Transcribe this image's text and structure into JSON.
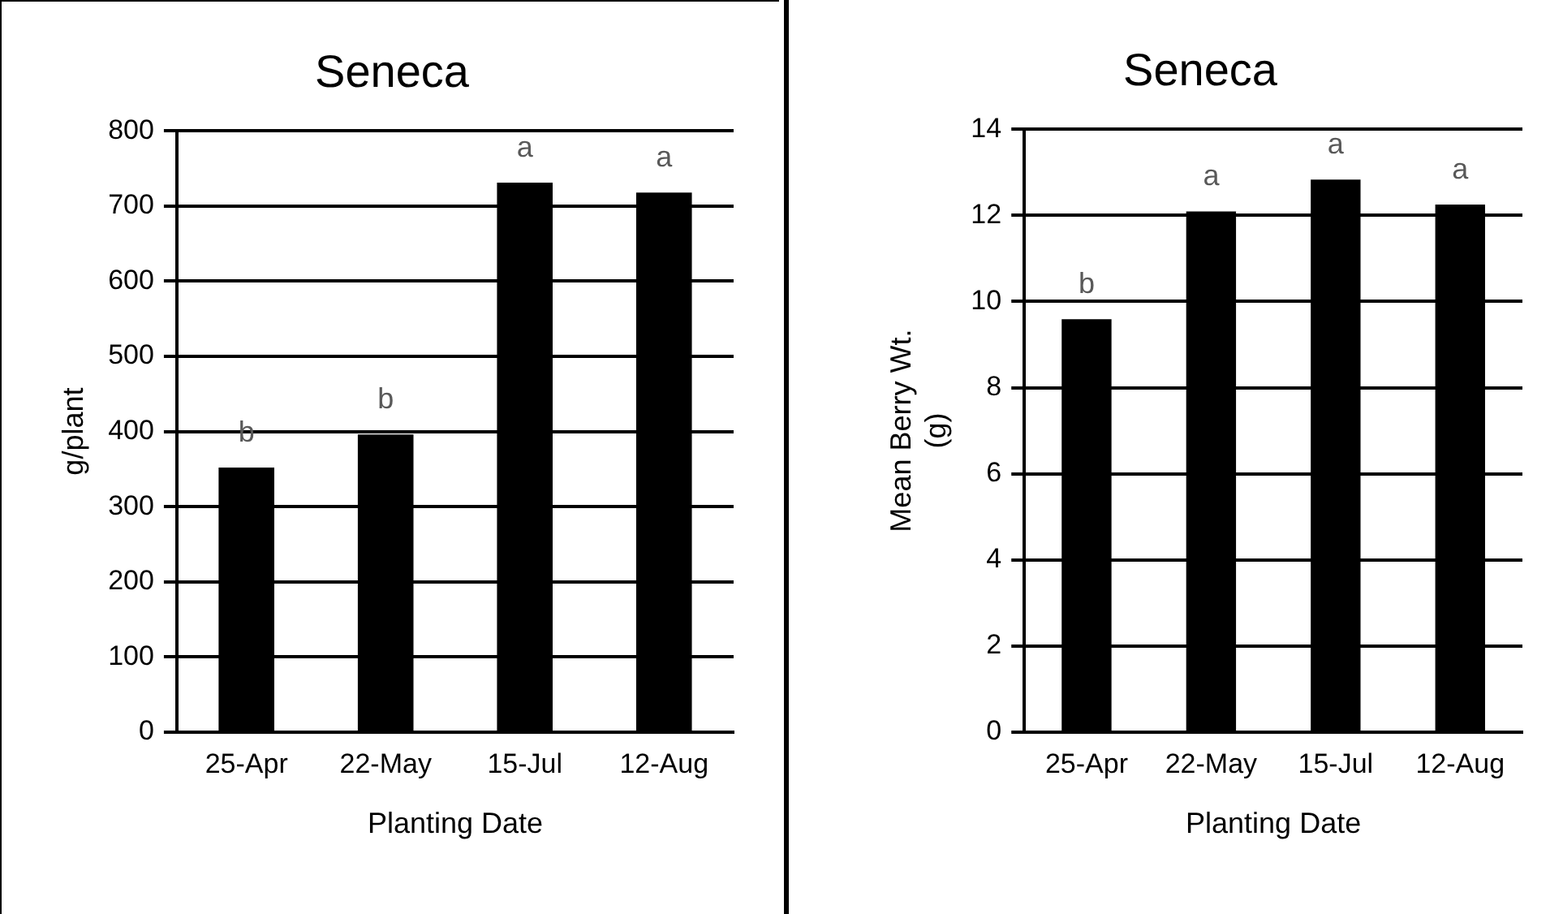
{
  "chart_data": [
    {
      "type": "bar",
      "title": "Seneca",
      "xlabel": "Planting Date",
      "ylabel": "g/plant",
      "categories": [
        "25-Apr",
        "22-May",
        "15-Jul",
        "12-Aug"
      ],
      "values": [
        352,
        396,
        731,
        718
      ],
      "color": "#000000",
      "ylim": [
        0,
        800
      ],
      "yticks": [
        0,
        100,
        200,
        300,
        400,
        500,
        600,
        700,
        800
      ],
      "grid": "y",
      "legend": false,
      "annotations": [
        {
          "text": "b",
          "x": "25-Apr",
          "y": 352
        },
        {
          "text": "b",
          "x": "22-May",
          "y": 396
        },
        {
          "text": "a",
          "x": "15-Jul",
          "y": 731
        },
        {
          "text": "a",
          "x": "12-Aug",
          "y": 718
        }
      ]
    },
    {
      "type": "bar",
      "title": "Seneca",
      "xlabel": "Planting Date",
      "ylabel": "Mean Berry Wt. (g)",
      "categories": [
        "25-Apr",
        "22-May",
        "15-Jul",
        "12-Aug"
      ],
      "values": [
        9.59,
        12.09,
        12.83,
        12.25
      ],
      "color": "#000000",
      "ylim": [
        0,
        14
      ],
      "yticks": [
        0,
        2,
        4,
        6,
        8,
        10,
        12,
        14
      ],
      "grid": "y",
      "legend": false,
      "annotations": [
        {
          "text": "b",
          "x": "25-Apr",
          "y": 9.59
        },
        {
          "text": "a",
          "x": "22-May",
          "y": 12.09
        },
        {
          "text": "a",
          "x": "15-Jul",
          "y": 12.83
        },
        {
          "text": "a",
          "x": "12-Aug",
          "y": 12.25
        }
      ]
    }
  ]
}
